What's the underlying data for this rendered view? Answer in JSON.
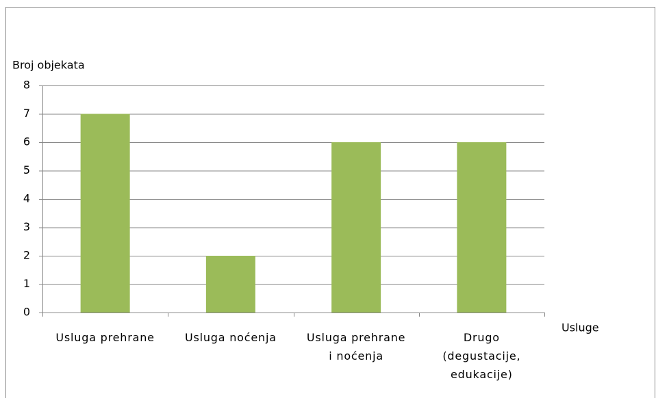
{
  "chart_data": {
    "type": "bar",
    "y_axis_label": "Broj objekata",
    "x_axis_label": "Usluge",
    "categories": [
      [
        "Usluga prehrane"
      ],
      [
        "Usluga noćenja"
      ],
      [
        "Usluga prehrane",
        "i noćenja"
      ],
      [
        "Drugo",
        "(degustacije,",
        "edukacije)"
      ]
    ],
    "values": [
      7,
      2,
      6,
      6
    ],
    "color": "#9bbb59",
    "ylim": [
      0,
      8
    ],
    "yticks": [
      0,
      1,
      2,
      3,
      4,
      5,
      6,
      7,
      8
    ],
    "grid": true
  }
}
